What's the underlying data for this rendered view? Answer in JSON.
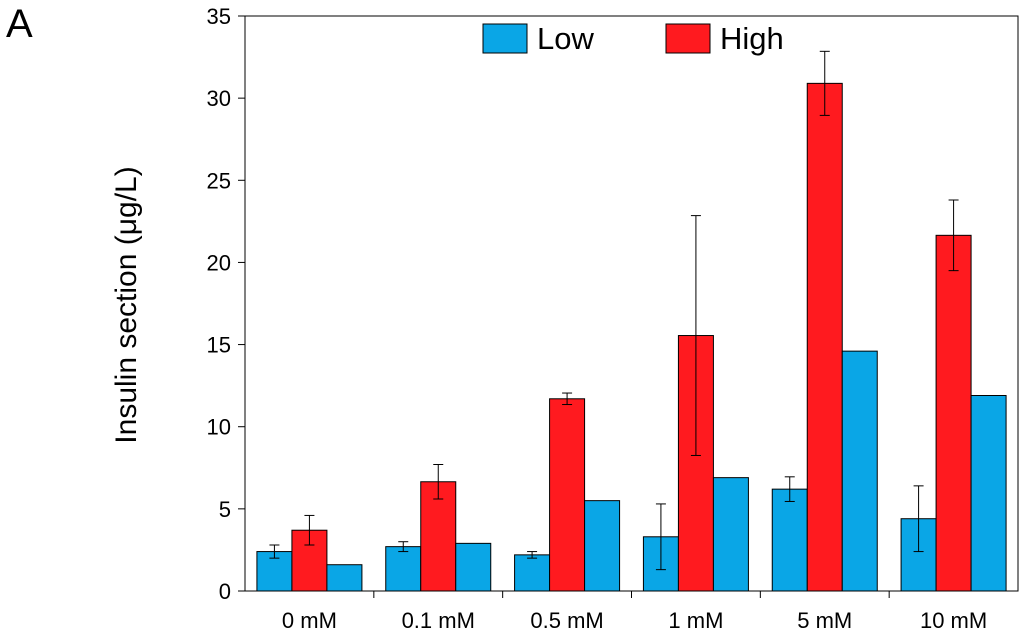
{
  "panel_label": "A",
  "chart_data": {
    "type": "bar",
    "title": "",
    "xlabel": "",
    "ylabel": "Insulin section (μg/L)",
    "ylim": [
      0,
      35
    ],
    "yticks": [
      0,
      5,
      10,
      15,
      20,
      25,
      30,
      35
    ],
    "categories": [
      "0 mM",
      "0.1 mM",
      "0.5 mM",
      "1 mM",
      "5 mM",
      "10 mM"
    ],
    "legend": [
      {
        "name": "Low",
        "color": "#0aa6e6"
      },
      {
        "name": "High",
        "color": "#ff1a1f"
      }
    ],
    "legend_position": "top-center",
    "series": [
      {
        "name": "Low",
        "color": "#0aa6e6",
        "values": [
          2.4,
          2.7,
          2.2,
          3.3,
          6.2,
          4.4
        ],
        "errors": [
          0.4,
          0.3,
          0.2,
          2.0,
          0.75,
          2.0
        ]
      },
      {
        "name": "High",
        "color": "#ff1a1f",
        "values": [
          3.7,
          6.65,
          11.7,
          15.55,
          30.9,
          21.65
        ],
        "errors": [
          0.9,
          1.05,
          0.35,
          7.3,
          1.95,
          2.15
        ]
      },
      {
        "name": "",
        "color": "#0aa6e6",
        "values": [
          1.6,
          2.9,
          5.5,
          6.9,
          14.6,
          11.9
        ],
        "errors": null
      }
    ]
  }
}
